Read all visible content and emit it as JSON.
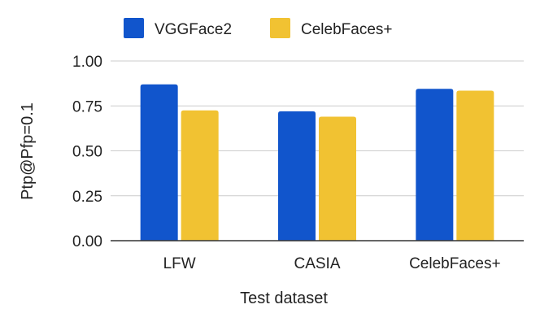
{
  "chart_data": {
    "type": "bar",
    "title": "",
    "xlabel": "Test dataset",
    "ylabel": "Ptp@Pfp=0.1",
    "categories": [
      "LFW",
      "CASIA",
      "CelebFaces+"
    ],
    "series": [
      {
        "name": "VGGFace2",
        "color": "#1155cc",
        "values": [
          0.87,
          0.72,
          0.845
        ]
      },
      {
        "name": "CelebFaces+",
        "color": "#f1c232",
        "values": [
          0.725,
          0.69,
          0.835
        ]
      }
    ],
    "ylim": [
      0,
      1
    ],
    "yticks": [
      "0.00",
      "0.25",
      "0.50",
      "0.75",
      "1.00"
    ],
    "grid": true,
    "legend_position": "top"
  }
}
